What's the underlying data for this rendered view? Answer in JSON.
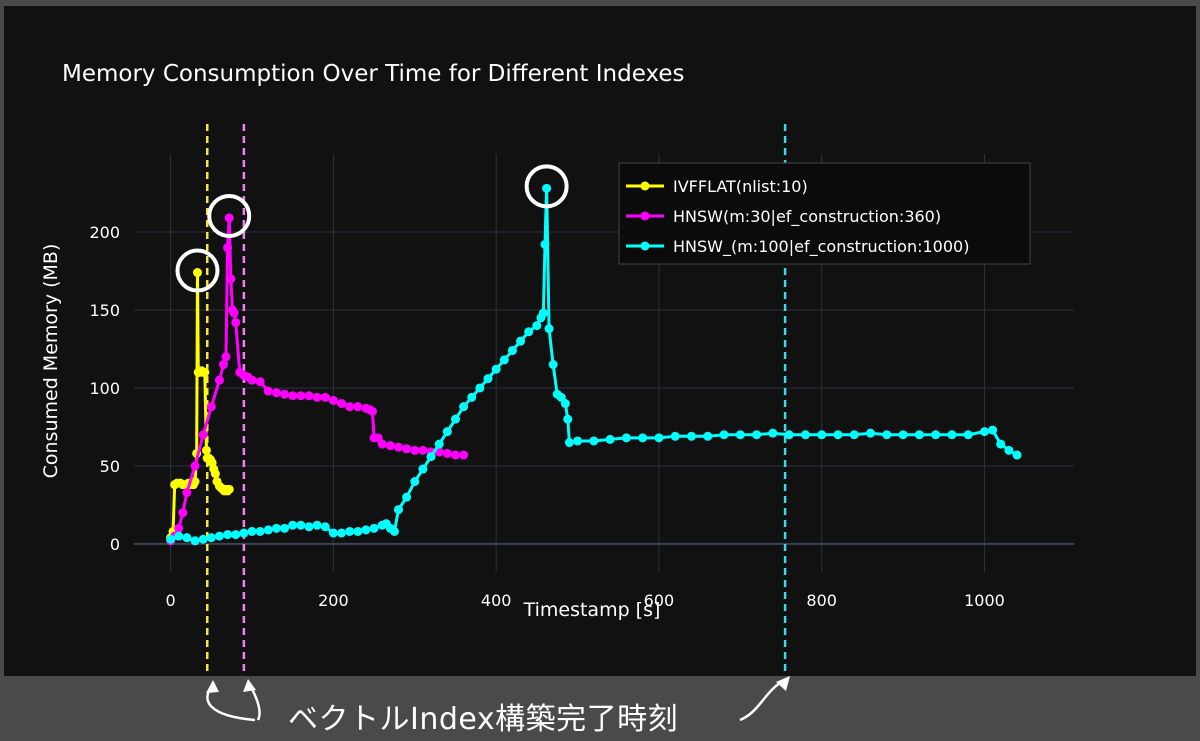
{
  "chart_data": {
    "type": "line",
    "title": "Memory Consumption Over Time for Different Indexes",
    "xlabel": "Timestamp [s]",
    "ylabel": "Consumed Memory (MB)",
    "xlim": [
      -45,
      1110
    ],
    "ylim": [
      -18,
      250
    ],
    "x_ticks": [
      0,
      200,
      400,
      600,
      800,
      1000
    ],
    "x_tick_labels": [
      "0",
      "200",
      "400",
      "600",
      "800",
      "1000"
    ],
    "y_ticks": [
      0,
      50,
      100,
      150,
      200
    ],
    "y_tick_labels": [
      "0",
      "50",
      "100",
      "150",
      "200"
    ],
    "grid": true,
    "legend_position": "top-right",
    "series": [
      {
        "name": "IVFFLAT(nlist:10)",
        "color": "#ffff00",
        "x": [
          0,
          3,
          5,
          8,
          12,
          15,
          18,
          22,
          24,
          26,
          28,
          30,
          32,
          33,
          34,
          36,
          38,
          40,
          42,
          44,
          45,
          47,
          49,
          51,
          53,
          55,
          57,
          60,
          62,
          64,
          66,
          68,
          70,
          72
        ],
        "y": [
          4,
          8,
          38,
          39,
          39,
          38,
          38,
          39,
          38,
          39,
          38,
          40,
          58,
          174,
          110,
          110,
          111,
          110,
          110,
          60,
          55,
          55,
          54,
          52,
          48,
          45,
          40,
          37,
          36,
          35,
          34,
          35,
          34,
          35
        ]
      },
      {
        "name": "HNSW(m:30|ef_construction:360)",
        "color": "#ff00ff",
        "x": [
          0,
          5,
          10,
          15,
          20,
          30,
          40,
          50,
          60,
          65,
          68,
          70,
          72,
          74,
          76,
          78,
          80,
          85,
          90,
          95,
          100,
          110,
          120,
          130,
          140,
          150,
          160,
          170,
          180,
          190,
          200,
          210,
          220,
          230,
          240,
          245,
          248,
          250,
          255,
          260,
          270,
          280,
          290,
          300,
          310,
          320,
          330,
          340,
          350,
          360
        ],
        "y": [
          2,
          5,
          10,
          20,
          33,
          50,
          70,
          88,
          105,
          115,
          120,
          190,
          209,
          170,
          150,
          148,
          142,
          110,
          108,
          107,
          105,
          104,
          98,
          97,
          96,
          95,
          95,
          95,
          94,
          94,
          92,
          90,
          88,
          88,
          87,
          86,
          85,
          68,
          68,
          64,
          63,
          62,
          61,
          60,
          60,
          59,
          59,
          58,
          57,
          57
        ]
      },
      {
        "name": "HNSW_(m:100|ef_construction:1000)",
        "color": "#00ffff",
        "x": [
          0,
          10,
          20,
          30,
          40,
          50,
          60,
          70,
          80,
          90,
          100,
          110,
          120,
          130,
          140,
          150,
          160,
          170,
          180,
          190,
          200,
          210,
          220,
          230,
          240,
          250,
          260,
          265,
          270,
          275,
          280,
          290,
          300,
          310,
          320,
          330,
          340,
          350,
          360,
          370,
          380,
          390,
          400,
          410,
          420,
          430,
          440,
          450,
          455,
          458,
          460,
          462,
          465,
          470,
          475,
          480,
          485,
          488,
          490,
          500,
          520,
          540,
          560,
          580,
          600,
          620,
          640,
          660,
          680,
          700,
          720,
          740,
          760,
          780,
          800,
          820,
          840,
          860,
          880,
          900,
          920,
          940,
          960,
          980,
          1000,
          1010,
          1020,
          1030,
          1040
        ],
        "y": [
          3,
          5,
          4,
          2,
          3,
          4,
          5,
          6,
          6,
          7,
          8,
          8,
          9,
          10,
          10,
          12,
          12,
          11,
          12,
          11,
          7,
          7,
          8,
          8,
          9,
          10,
          12,
          13,
          10,
          8,
          22,
          30,
          40,
          48,
          56,
          64,
          72,
          80,
          88,
          94,
          100,
          106,
          112,
          118,
          124,
          130,
          136,
          140,
          145,
          148,
          192,
          228,
          138,
          115,
          96,
          94,
          90,
          80,
          65,
          66,
          66,
          67,
          68,
          68,
          68,
          69,
          69,
          69,
          70,
          70,
          70,
          71,
          70,
          70,
          70,
          70,
          70,
          71,
          70,
          70,
          70,
          70,
          70,
          70,
          72,
          73,
          64,
          60,
          57
        ]
      }
    ],
    "vlines": [
      {
        "x": 45,
        "color": "#f5e642"
      },
      {
        "x": 90,
        "color": "#f080f0"
      },
      {
        "x": 755,
        "color": "#3fd8e8"
      }
    ],
    "highlight_circles": [
      {
        "x": 33,
        "y": 174
      },
      {
        "x": 72,
        "y": 209
      },
      {
        "x": 462,
        "y": 228
      }
    ]
  },
  "caption": "ベクトルIndex構築完了時刻"
}
